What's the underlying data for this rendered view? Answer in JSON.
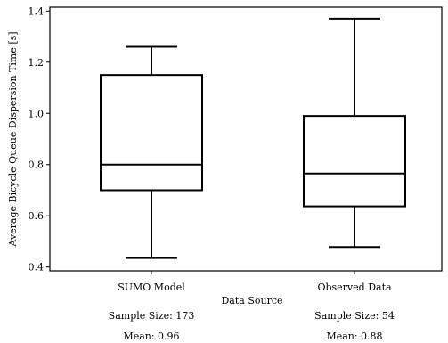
{
  "chart_data": {
    "type": "box",
    "title": "",
    "xlabel": "Data Source",
    "ylabel": "Average Bicycle Queue Dispersion Time [s]",
    "ylim": [
      0.385,
      1.415
    ],
    "yticks": [
      0.4,
      0.6,
      0.8,
      1.0,
      1.2,
      1.4
    ],
    "ytick_labels": [
      "0.4",
      "0.6",
      "0.8",
      "1.0",
      "1.2",
      "1.4"
    ],
    "categories": [
      "SUMO Model",
      "Observed Data"
    ],
    "boxes": [
      {
        "category": "SUMO Model",
        "whisker_low": 0.435,
        "q1": 0.7,
        "median": 0.8,
        "q3": 1.15,
        "whisker_high": 1.26
      },
      {
        "category": "Observed Data",
        "whisker_low": 0.478,
        "q1": 0.637,
        "median": 0.765,
        "q3": 0.99,
        "whisker_high": 1.37
      }
    ],
    "annotations": [
      {
        "sample_size": "Sample Size: 173",
        "mean": "Mean: 0.96"
      },
      {
        "sample_size": "Sample Size: 54",
        "mean": "Mean: 0.88"
      }
    ],
    "grid": false,
    "legend": "none"
  }
}
